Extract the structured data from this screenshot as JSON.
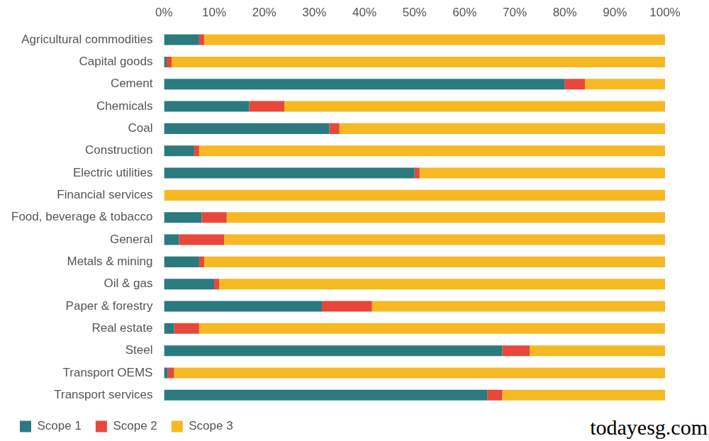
{
  "chart_data": {
    "type": "bar",
    "orientation": "horizontal",
    "stacked": true,
    "grid": false,
    "legend": "bottom",
    "categories": [
      "Agricultural commodities",
      "Capital goods",
      "Cement",
      "Chemicals",
      "Coal",
      "Construction",
      "Electric utilities",
      "Financial services",
      "Food, beverage & tobacco",
      "General",
      "Metals & mining",
      "Oil & gas",
      "Paper & forestry",
      "Real estate",
      "Steel",
      "Transport OEMS",
      "Transport services"
    ],
    "series": [
      {
        "name": "Scope 1",
        "color": "#2a7a80",
        "values": [
          7,
          0.5,
          80,
          17,
          33,
          6,
          50,
          0,
          7.5,
          3,
          7,
          10,
          31.5,
          2,
          67.5,
          0.7,
          64.5
        ]
      },
      {
        "name": "Scope 2",
        "color": "#e8473a",
        "values": [
          1,
          1,
          4,
          7,
          2,
          1,
          1,
          0,
          5,
          9,
          1,
          1,
          10,
          5,
          5.5,
          1.3,
          3
        ]
      },
      {
        "name": "Scope 3",
        "color": "#f6b924",
        "values": [
          92,
          98.5,
          16,
          76,
          65,
          93,
          49,
          100,
          87.5,
          88,
          92,
          89,
          58.5,
          93,
          27,
          98,
          32.5
        ]
      }
    ],
    "xlim": [
      0,
      100
    ],
    "xticks": [
      {
        "value": 0,
        "label": "0%"
      },
      {
        "value": 10,
        "label": "10%"
      },
      {
        "value": 20,
        "label": "20%"
      },
      {
        "value": 30,
        "label": "30%"
      },
      {
        "value": 40,
        "label": "40%"
      },
      {
        "value": 50,
        "label": "50%"
      },
      {
        "value": 60,
        "label": "60%"
      },
      {
        "value": 70,
        "label": "70%"
      },
      {
        "value": 80,
        "label": "80%"
      },
      {
        "value": 90,
        "label": "90%"
      },
      {
        "value": 100,
        "label": "100%"
      }
    ],
    "annotations": [
      "todayesg.com"
    ]
  }
}
